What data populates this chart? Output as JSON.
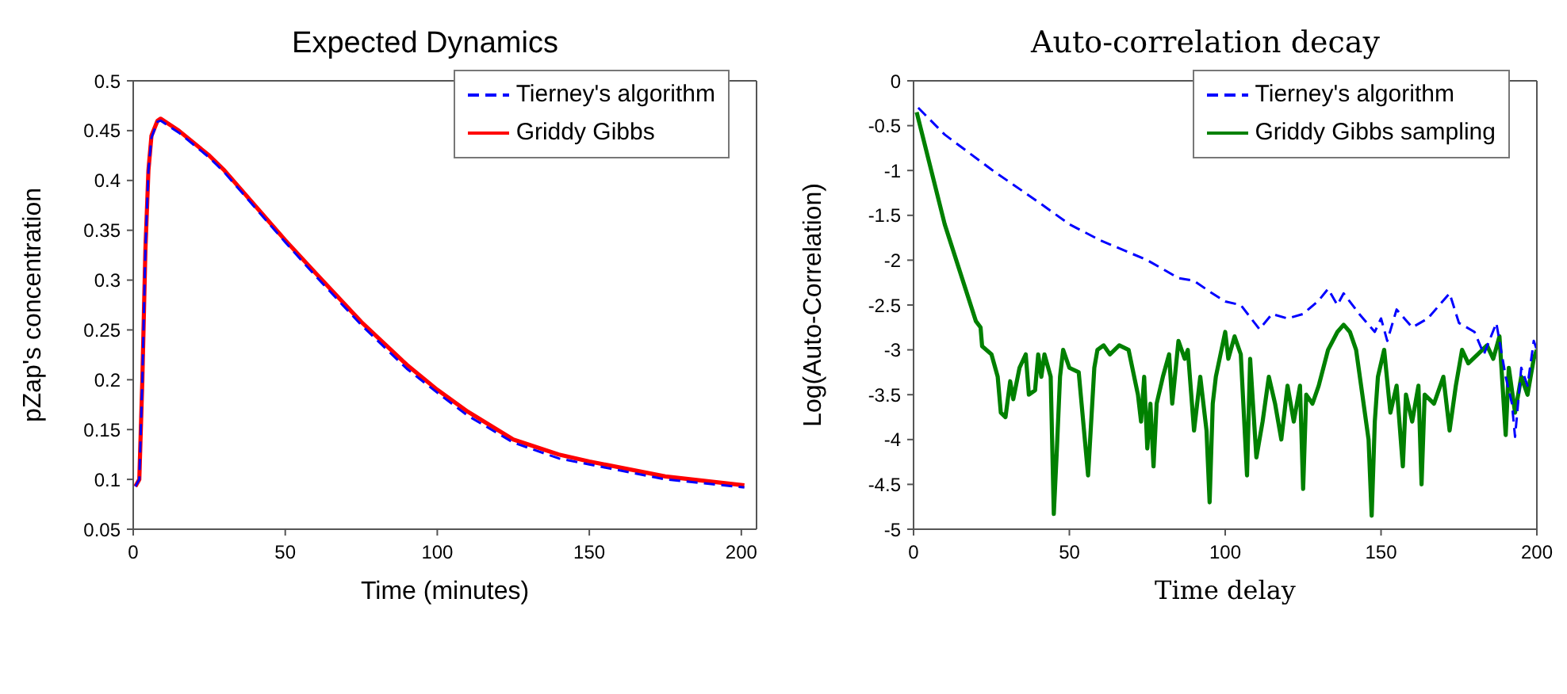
{
  "chart_data": [
    {
      "type": "line",
      "title": "Expected Dynamics",
      "xlabel": "Time (minutes)",
      "ylabel": "pZap's concentration",
      "xlim": [
        0,
        205
      ],
      "xticks": [
        0,
        50,
        100,
        150,
        200
      ],
      "ylim": [
        0.05,
        0.5
      ],
      "yticks": [
        0.05,
        0.1,
        0.15,
        0.2,
        0.25,
        0.3,
        0.35,
        0.4,
        0.45,
        0.5
      ],
      "grid": false,
      "legend": "top right",
      "marker": "none",
      "series": [
        {
          "name": "Tierney's algorithm",
          "color": "#0000ff",
          "line_style": "dashed",
          "x": [
            0.7,
            2,
            3,
            4,
            5,
            6,
            8,
            9,
            15,
            25,
            30,
            40,
            50,
            60,
            75,
            90,
            100,
            110,
            125,
            140,
            150,
            175,
            201
          ],
          "values": [
            0.093,
            0.1,
            0.2,
            0.33,
            0.41,
            0.443,
            0.459,
            0.46,
            0.448,
            0.423,
            0.408,
            0.373,
            0.338,
            0.304,
            0.255,
            0.211,
            0.187,
            0.164,
            0.137,
            0.121,
            0.115,
            0.1,
            0.092
          ]
        },
        {
          "name": "Griddy Gibbs",
          "color": "#ff0000",
          "line_style": "solid",
          "x": [
            0.7,
            2,
            3,
            4,
            5,
            6,
            8,
            9,
            15,
            25,
            30,
            40,
            50,
            60,
            75,
            90,
            100,
            110,
            125,
            140,
            150,
            175,
            201
          ],
          "values": [
            0.093,
            0.1,
            0.2,
            0.33,
            0.41,
            0.445,
            0.46,
            0.462,
            0.45,
            0.425,
            0.41,
            0.375,
            0.34,
            0.307,
            0.258,
            0.215,
            0.19,
            0.168,
            0.14,
            0.125,
            0.118,
            0.103,
            0.094
          ]
        }
      ]
    },
    {
      "type": "line",
      "title": "Auto-correlation decay",
      "xlabel": "Time delay",
      "ylabel": "Log(Auto-Correlation)",
      "xlim": [
        0,
        200
      ],
      "xticks": [
        0,
        50,
        100,
        150,
        200
      ],
      "ylim": [
        -5,
        0
      ],
      "yticks": [
        -5,
        -4.5,
        -4,
        -3.5,
        -3,
        -2.5,
        -2,
        -1.5,
        -1,
        -0.5,
        0
      ],
      "grid": false,
      "legend": "top right",
      "marker": "none",
      "series": [
        {
          "name": "Tierney's algorithm",
          "color": "#0000ff",
          "line_style": "dashed",
          "x": [
            1.5,
            10,
            25,
            40,
            50,
            60,
            75,
            85,
            90,
            95,
            100,
            105,
            111,
            115,
            120,
            125,
            130,
            133,
            136,
            138,
            143,
            148,
            150,
            152,
            155,
            160,
            165,
            172,
            175,
            180,
            183,
            187,
            190,
            192,
            193,
            195,
            197,
            199,
            200
          ],
          "values": [
            -0.3,
            -0.6,
            -0.99,
            -1.35,
            -1.6,
            -1.78,
            -2.0,
            -2.2,
            -2.23,
            -2.35,
            -2.46,
            -2.5,
            -2.77,
            -2.6,
            -2.65,
            -2.6,
            -2.45,
            -2.32,
            -2.5,
            -2.37,
            -2.6,
            -2.8,
            -2.65,
            -2.9,
            -2.55,
            -2.75,
            -2.65,
            -2.37,
            -2.7,
            -2.8,
            -3.05,
            -2.7,
            -3.3,
            -3.6,
            -3.97,
            -3.2,
            -3.4,
            -2.9,
            -3.0
          ]
        },
        {
          "name": "Griddy Gibbs sampling",
          "color": "#008000",
          "line_style": "solid",
          "x": [
            1,
            10,
            20,
            21.5,
            22,
            25,
            27,
            28,
            29.5,
            31,
            32,
            34,
            36,
            37,
            39,
            40,
            41,
            42,
            44,
            45,
            46,
            47,
            48,
            50,
            53,
            56,
            58,
            59,
            61,
            63,
            66,
            69,
            72,
            73,
            74,
            75,
            76,
            77,
            78,
            80,
            82,
            83,
            85,
            87,
            88,
            90,
            92,
            94,
            95,
            96,
            97,
            100,
            101,
            103,
            105,
            107,
            108,
            110,
            112,
            114,
            116,
            118,
            120,
            122,
            124,
            125,
            126,
            128,
            130,
            133,
            136,
            138,
            140,
            142,
            144,
            146,
            147,
            148,
            149,
            151,
            153,
            155,
            157,
            158,
            160,
            162,
            163,
            164,
            167,
            170,
            172,
            174,
            176,
            178,
            181,
            184,
            186,
            188,
            189,
            190,
            191,
            193,
            195,
            197,
            199,
            200
          ],
          "values": [
            -0.35,
            -1.6,
            -2.68,
            -2.75,
            -2.96,
            -3.05,
            -3.3,
            -3.7,
            -3.75,
            -3.35,
            -3.55,
            -3.2,
            -3.05,
            -3.5,
            -3.45,
            -3.05,
            -3.3,
            -3.05,
            -3.3,
            -4.83,
            -4.1,
            -3.3,
            -3.0,
            -3.2,
            -3.25,
            -4.4,
            -3.2,
            -3.0,
            -2.95,
            -3.05,
            -2.95,
            -3.0,
            -3.5,
            -3.8,
            -3.3,
            -4.1,
            -3.6,
            -4.3,
            -3.6,
            -3.3,
            -3.05,
            -3.6,
            -2.9,
            -3.1,
            -3.0,
            -3.9,
            -3.3,
            -3.9,
            -4.7,
            -3.6,
            -3.3,
            -2.8,
            -3.1,
            -2.85,
            -3.05,
            -4.4,
            -3.1,
            -4.2,
            -3.8,
            -3.3,
            -3.6,
            -4.0,
            -3.4,
            -3.8,
            -3.4,
            -4.55,
            -3.5,
            -3.6,
            -3.4,
            -3.0,
            -2.8,
            -2.72,
            -2.8,
            -3.0,
            -3.5,
            -4.0,
            -4.85,
            -3.8,
            -3.3,
            -3.0,
            -3.7,
            -3.4,
            -4.3,
            -3.5,
            -3.8,
            -3.4,
            -4.5,
            -3.5,
            -3.6,
            -3.3,
            -3.9,
            -3.4,
            -3.0,
            -3.15,
            -3.05,
            -2.95,
            -3.1,
            -2.85,
            -3.4,
            -3.95,
            -3.2,
            -3.7,
            -3.3,
            -3.5,
            -3.1,
            -3.0
          ]
        }
      ]
    }
  ]
}
